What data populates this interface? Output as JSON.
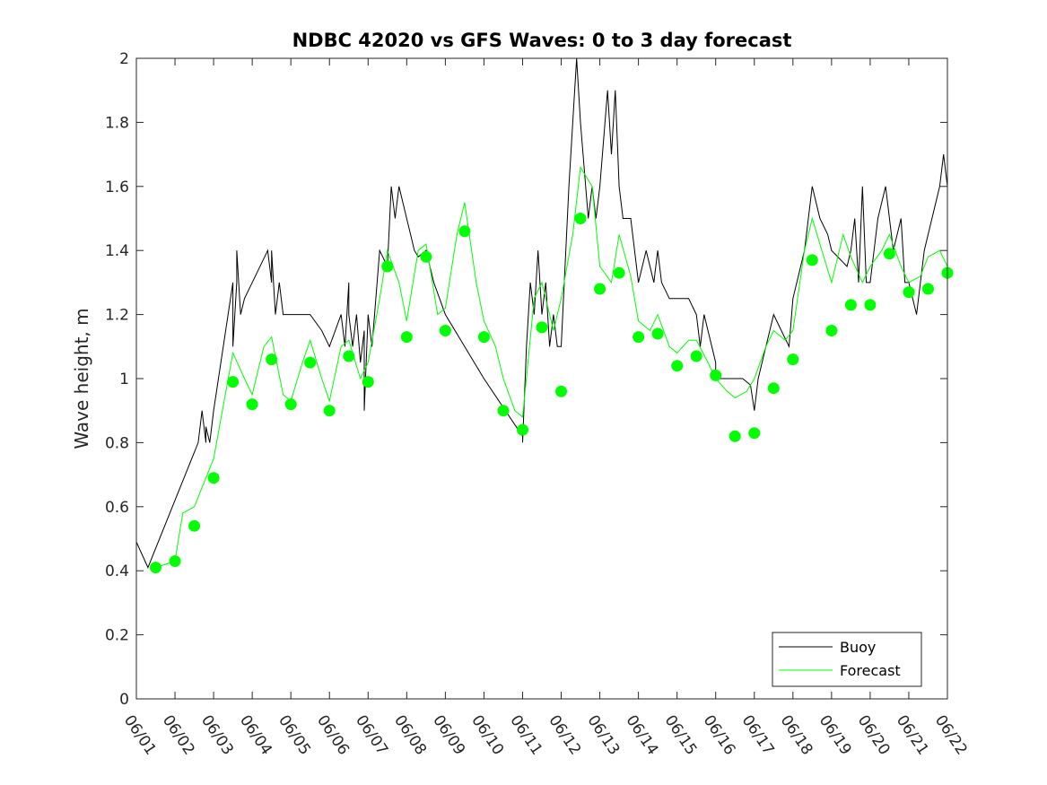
{
  "chart_data": {
    "type": "line",
    "title": "NDBC 42020 vs GFS Waves: 0 to 3 day forecast",
    "xlabel": "",
    "ylabel": "Wave height, m",
    "x_unit": "day of June",
    "xlim": [
      1,
      22
    ],
    "ylim": [
      0,
      2
    ],
    "x_tick_values": [
      1,
      2,
      3,
      4,
      5,
      6,
      7,
      8,
      9,
      10,
      11,
      12,
      13,
      14,
      15,
      16,
      17,
      18,
      19,
      20,
      21,
      22
    ],
    "x_tick_labels": [
      "06/01",
      "06/02",
      "06/03",
      "06/04",
      "06/05",
      "06/06",
      "06/07",
      "06/08",
      "06/09",
      "06/10",
      "06/11",
      "06/12",
      "06/13",
      "06/14",
      "06/15",
      "06/16",
      "06/17",
      "06/18",
      "06/19",
      "06/20",
      "06/21",
      "06/22"
    ],
    "y_ticks": [
      "0",
      "0.2",
      "0.4",
      "0.6",
      "0.8",
      "1",
      "1.2",
      "1.4",
      "1.6",
      "1.8",
      "2"
    ],
    "grid": false,
    "legend": {
      "placement": "bottom-right",
      "entries": [
        "Buoy",
        "Forecast"
      ]
    },
    "colors": {
      "buoy": "#000000",
      "forecast": "#00ff00"
    },
    "series": [
      {
        "name": "Buoy",
        "style": "line",
        "x": [
          1.0,
          1.3,
          2.6,
          2.7,
          2.8,
          2.8,
          2.9,
          3.0,
          3.5,
          3.5,
          3.6,
          3.6,
          3.7,
          3.8,
          4.4,
          4.5,
          4.5,
          4.6,
          4.7,
          4.8,
          4.8,
          5.0,
          5.5,
          5.8,
          6.0,
          6.3,
          6.4,
          6.5,
          6.5,
          6.6,
          6.7,
          6.8,
          6.9,
          6.9,
          7.0,
          7.1,
          7.2,
          7.3,
          7.5,
          7.6,
          7.7,
          7.8,
          8.0,
          8.2,
          8.3,
          8.5,
          8.6,
          8.7,
          9.0,
          10.0,
          11.0,
          11.0,
          11.1,
          11.2,
          11.3,
          11.4,
          11.5,
          11.6,
          11.7,
          11.8,
          11.9,
          12.0,
          12.2,
          12.4,
          12.5,
          12.7,
          12.8,
          12.9,
          13.0,
          13.2,
          13.3,
          13.4,
          13.5,
          13.6,
          13.8,
          14.0,
          14.2,
          14.4,
          14.5,
          14.6,
          14.8,
          15.0,
          15.3,
          15.5,
          15.6,
          15.7,
          15.9,
          16.0,
          16.0,
          16.1,
          16.3,
          16.5,
          16.7,
          16.9,
          17.0,
          17.1,
          17.3,
          17.5,
          17.7,
          17.9,
          18.0,
          18.3,
          18.5,
          18.7,
          18.9,
          19.0,
          19.4,
          19.5,
          19.6,
          19.7,
          19.8,
          19.9,
          20.0,
          20.2,
          20.4,
          20.6,
          20.8,
          20.9,
          21.0,
          21.2,
          21.4,
          21.6,
          21.8,
          21.9,
          22.0
        ],
        "y": [
          0.49,
          0.41,
          0.8,
          0.9,
          0.8,
          0.85,
          0.8,
          0.9,
          1.3,
          1.1,
          1.3,
          1.4,
          1.2,
          1.25,
          1.4,
          1.3,
          1.4,
          1.2,
          1.3,
          1.2,
          1.2,
          1.2,
          1.2,
          1.15,
          1.1,
          1.2,
          1.1,
          1.3,
          1.2,
          1.1,
          1.2,
          1.05,
          1.15,
          0.9,
          1.2,
          1.1,
          1.25,
          1.4,
          1.35,
          1.6,
          1.5,
          1.6,
          1.5,
          1.4,
          1.38,
          1.4,
          1.35,
          1.3,
          1.2,
          1.0,
          0.82,
          0.8,
          1.1,
          1.3,
          1.2,
          1.4,
          1.2,
          1.3,
          1.1,
          1.2,
          1.1,
          1.1,
          1.6,
          2.0,
          1.8,
          1.5,
          1.6,
          1.5,
          1.6,
          1.9,
          1.7,
          1.9,
          1.6,
          1.5,
          1.5,
          1.3,
          1.4,
          1.3,
          1.4,
          1.3,
          1.25,
          1.25,
          1.25,
          1.2,
          1.1,
          1.2,
          1.1,
          1.05,
          1.0,
          1.0,
          1.0,
          1.0,
          1.0,
          0.98,
          0.9,
          1.0,
          1.1,
          1.2,
          1.15,
          1.1,
          1.25,
          1.4,
          1.6,
          1.5,
          1.45,
          1.4,
          1.35,
          1.4,
          1.5,
          1.3,
          1.6,
          1.3,
          1.3,
          1.5,
          1.6,
          1.4,
          1.5,
          1.3,
          1.3,
          1.2,
          1.4,
          1.5,
          1.6,
          1.7,
          1.6
        ]
      },
      {
        "name": "Forecast",
        "style": "line",
        "x": [
          1.5,
          2.0,
          2.2,
          2.5,
          3.0,
          3.5,
          3.8,
          4.0,
          4.3,
          4.5,
          4.8,
          5.0,
          5.3,
          5.5,
          5.8,
          6.0,
          6.3,
          6.5,
          6.8,
          7.0,
          7.3,
          7.5,
          7.8,
          8.0,
          8.3,
          8.5,
          8.8,
          9.0,
          9.3,
          9.5,
          9.8,
          10.0,
          10.3,
          10.5,
          10.8,
          11.0,
          11.3,
          11.5,
          11.8,
          12.0,
          12.3,
          12.5,
          12.8,
          13.0,
          13.3,
          13.5,
          13.8,
          14.0,
          14.3,
          14.5,
          14.8,
          15.0,
          15.3,
          15.5,
          15.8,
          16.0,
          16.3,
          16.5,
          16.8,
          17.0,
          17.3,
          17.5,
          17.8,
          18.0,
          18.3,
          18.5,
          18.8,
          19.0,
          19.3,
          19.5,
          19.8,
          20.0,
          20.3,
          20.5,
          20.8,
          21.0,
          21.3,
          21.5,
          21.8,
          22.0
        ],
        "y": [
          0.41,
          0.43,
          0.58,
          0.6,
          0.75,
          1.08,
          1.0,
          0.95,
          1.1,
          1.13,
          0.95,
          0.93,
          1.05,
          1.12,
          1.0,
          0.93,
          1.1,
          1.12,
          1.0,
          1.05,
          1.25,
          1.4,
          1.3,
          1.18,
          1.4,
          1.42,
          1.2,
          1.22,
          1.45,
          1.55,
          1.3,
          1.18,
          1.1,
          1.0,
          0.9,
          0.88,
          1.25,
          1.3,
          1.15,
          1.25,
          1.45,
          1.66,
          1.6,
          1.35,
          1.3,
          1.45,
          1.32,
          1.18,
          1.15,
          1.2,
          1.1,
          1.08,
          1.12,
          1.12,
          1.05,
          1.0,
          0.96,
          0.94,
          0.96,
          1.0,
          1.1,
          1.15,
          1.12,
          1.15,
          1.4,
          1.5,
          1.38,
          1.3,
          1.45,
          1.38,
          1.3,
          1.35,
          1.4,
          1.45,
          1.35,
          1.3,
          1.32,
          1.38,
          1.4,
          1.35
        ]
      }
    ],
    "forecast_points": {
      "x": [
        1.5,
        2.0,
        2.5,
        3.0,
        3.5,
        4.0,
        4.5,
        5.0,
        5.5,
        6.0,
        6.5,
        7.0,
        7.5,
        8.0,
        8.5,
        9.0,
        9.5,
        10.0,
        10.5,
        11.0,
        11.5,
        12.0,
        12.5,
        13.0,
        13.5,
        14.0,
        14.5,
        15.0,
        15.5,
        16.0,
        16.5,
        17.0,
        17.5,
        18.0,
        18.5,
        19.0,
        19.5,
        20.0,
        20.5,
        21.0,
        21.5,
        22.0
      ],
      "y": [
        0.41,
        0.43,
        0.54,
        0.69,
        0.99,
        0.92,
        1.06,
        0.92,
        1.05,
        0.9,
        1.07,
        0.99,
        1.35,
        1.13,
        1.38,
        1.15,
        1.46,
        1.13,
        0.9,
        0.84,
        1.16,
        0.96,
        1.5,
        1.28,
        1.33,
        1.13,
        1.14,
        1.04,
        1.07,
        1.01,
        0.82,
        0.83,
        0.97,
        1.06,
        1.37,
        1.15,
        1.23,
        1.23,
        1.39,
        1.27,
        1.28,
        1.33
      ]
    }
  }
}
